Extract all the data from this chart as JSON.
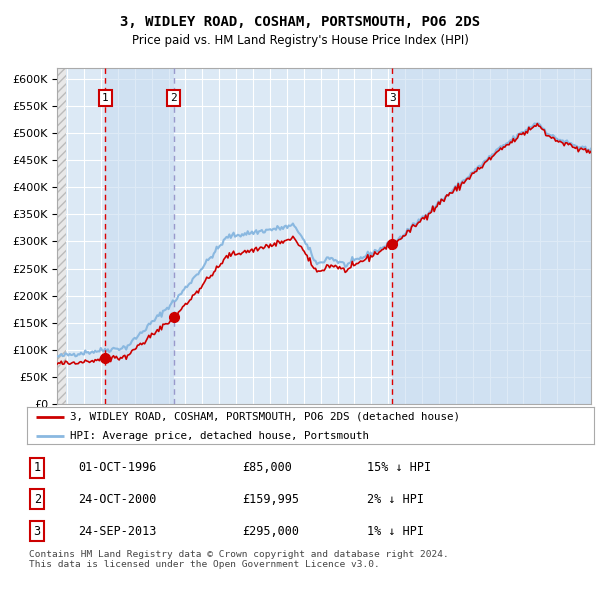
{
  "title": "3, WIDLEY ROAD, COSHAM, PORTSMOUTH, PO6 2DS",
  "subtitle": "Price paid vs. HM Land Registry's House Price Index (HPI)",
  "legend_property": "3, WIDLEY ROAD, COSHAM, PORTSMOUTH, PO6 2DS (detached house)",
  "legend_hpi": "HPI: Average price, detached house, Portsmouth",
  "sale_events": [
    {
      "num": 1,
      "date": "01-OCT-1996",
      "price": 85000,
      "hpi_diff": "15% ↓ HPI"
    },
    {
      "num": 2,
      "date": "24-OCT-2000",
      "price": 159995,
      "hpi_diff": "2% ↓ HPI"
    },
    {
      "num": 3,
      "date": "24-SEP-2013",
      "price": 295000,
      "hpi_diff": "1% ↓ HPI"
    }
  ],
  "footer": "Contains HM Land Registry data © Crown copyright and database right 2024.\nThis data is licensed under the Open Government Licence v3.0.",
  "bg_color": "#dce9f5",
  "grid_color": "#ffffff",
  "property_line_color": "#cc0000",
  "hpi_line_color": "#8ab8e0",
  "sale_marker_color": "#cc0000",
  "vline_color_red": "#dd0000",
  "vline_color_blue": "#9999cc",
  "ylim": [
    0,
    620000
  ],
  "yticks": [
    0,
    50000,
    100000,
    150000,
    200000,
    250000,
    300000,
    350000,
    400000,
    450000,
    500000,
    550000,
    600000
  ],
  "sale1_x": 1996.75,
  "sale2_x": 2000.81,
  "sale3_x": 2013.73,
  "xmin": 1993.9,
  "xmax": 2025.5
}
